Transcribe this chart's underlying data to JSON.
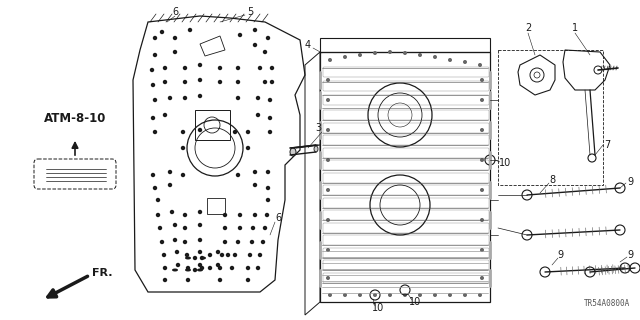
{
  "bg_color": "#ffffff",
  "line_color": "#1a1a1a",
  "atm_label": "ATM-8-10",
  "fr_label": "FR.",
  "code_label": "TR54A0800A",
  "figsize": [
    6.4,
    3.2
  ],
  "dpi": 100
}
